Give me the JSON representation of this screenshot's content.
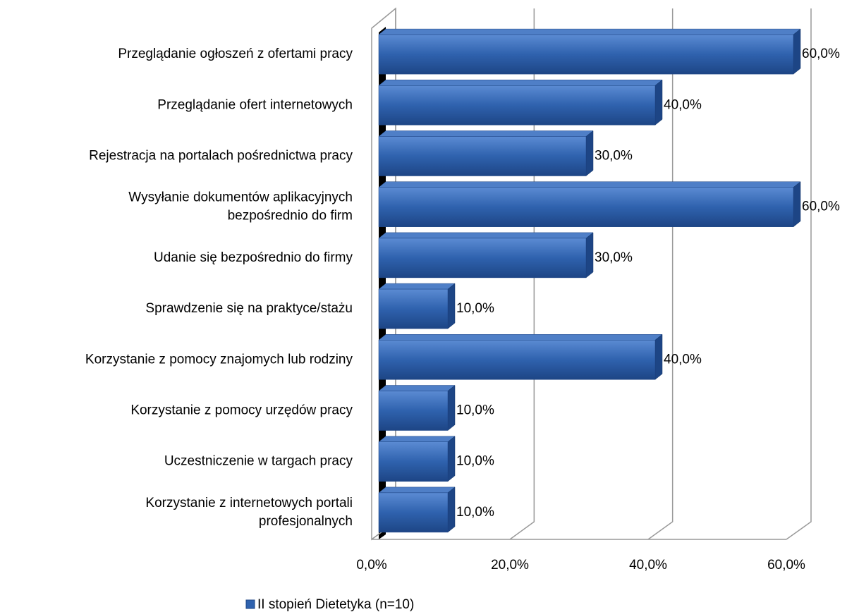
{
  "chart_data": {
    "type": "bar",
    "categories": [
      "Przeglądanie ogłoszeń z ofertami pracy",
      "Przeglądanie ofert internetowych",
      "Rejestracja na portalach pośrednictwa pracy",
      "Wysyłanie dokumentów aplikacyjnych\nbezpośrednio do firm",
      "Udanie się bezpośrednio do firmy",
      "Sprawdzenie się na praktyce/stażu",
      "Korzystanie  z pomocy znajomych lub rodziny",
      "Korzystanie z pomocy urzędów pracy",
      "Uczestniczenie w targach pracy",
      "Korzystanie z internetowych portali\nprofesjonalnych"
    ],
    "series": [
      {
        "name": "II stopień Dietetyka (n=10)",
        "color": "#2f62ae",
        "values": [
          60,
          40,
          30,
          60,
          30,
          10,
          40,
          10,
          10,
          10
        ],
        "value_labels": [
          "60,0%",
          "40,0%",
          "30,0%",
          "60,0%",
          "30,0%",
          "10,0%",
          "40,0%",
          "10,0%",
          "10,0%",
          "10,0%"
        ]
      }
    ],
    "xlim": [
      0,
      60
    ],
    "xticks": [
      {
        "value": 0,
        "label": "0,0%"
      },
      {
        "value": 20,
        "label": "20,0%"
      },
      {
        "value": 40,
        "label": "40,0%"
      },
      {
        "value": 60,
        "label": "60,0%"
      }
    ],
    "grid": true,
    "legend": "bottom"
  }
}
